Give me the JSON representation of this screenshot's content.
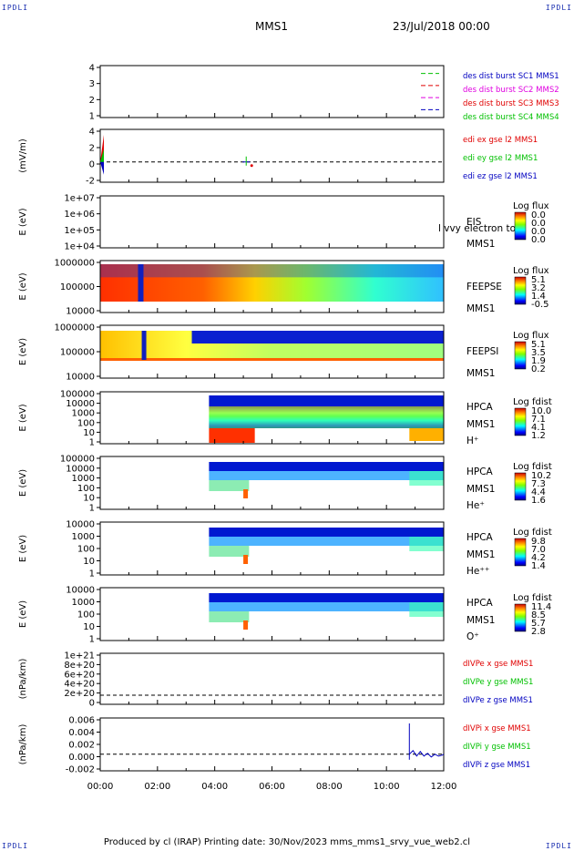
{
  "corner_label": "IPDLI",
  "header": {
    "spacecraft": "MMS1",
    "date": "23/Jul/2018 00:00"
  },
  "footer": {
    "text": "Produced by cl (IRAP)   Printing date: 30/Nov/2023   mms_mms1_srvy_vue_web2.cl"
  },
  "colors": {
    "red": "#e00000",
    "green": "#00c000",
    "blue": "#0000c0",
    "magenta": "#e000e0"
  },
  "chart_data": [
    {
      "type": "line",
      "panel": "spacecraft_flags",
      "ylim": [
        0.5,
        4.5
      ],
      "yticks": [
        "1",
        "2",
        "3",
        "4"
      ],
      "ylabel": "",
      "legend": [
        {
          "text": "des dist burst SC1 MMS1",
          "color": "#0000c0"
        },
        {
          "text": "des dist burst SC2 MMS2",
          "color": "#e000e0"
        },
        {
          "text": "des dist burst SC3 MMS3",
          "color": "#e00000"
        },
        {
          "text": "des dist burst SC4 MMS4",
          "color": "#00c000"
        }
      ],
      "dashes": [
        {
          "y": 4,
          "color": "#00c000"
        },
        {
          "y": 3,
          "color": "#e00000"
        },
        {
          "y": 2,
          "color": "#e000e0"
        },
        {
          "y": 1,
          "color": "#0000c0"
        }
      ]
    },
    {
      "type": "line",
      "panel": "edi_e_field",
      "ylabel": "(mV/m)",
      "ylim": [
        -3,
        5
      ],
      "yticks": [
        "-2",
        "0",
        "2",
        "4"
      ],
      "legend": [
        {
          "text": "edi ex gse l2 MMS1",
          "color": "#e00000"
        },
        {
          "text": "edi ey gse l2 MMS1",
          "color": "#00c000"
        },
        {
          "text": "edi ez gse l2 MMS1",
          "color": "#0000c0"
        }
      ],
      "zero_line": 0
    },
    {
      "type": "heatmap",
      "panel": "eis",
      "ylabel": "E (eV)",
      "yticks": [
        "1e+04",
        "1e+05",
        "1e+06",
        "1e+07"
      ],
      "labels": [
        "EIS",
        "MMS1"
      ],
      "overlay_label": "l vvy electron to",
      "colorbar": {
        "title": "Log flux",
        "ticks": [
          "0.0",
          "0.0",
          "0.0",
          "0.0"
        ]
      }
    },
    {
      "type": "heatmap",
      "panel": "feeps_electrons",
      "ylabel": "E (eV)",
      "yticks": [
        "10000",
        "100000",
        "1000000"
      ],
      "labels": [
        "FEEPSE",
        "MMS1"
      ],
      "colorbar": {
        "title": "Log flux",
        "ticks": [
          "5.1",
          "3.2",
          "1.4",
          "-0.5"
        ]
      }
    },
    {
      "type": "heatmap",
      "panel": "feeps_ions",
      "ylabel": "E (eV)",
      "yticks": [
        "10000",
        "100000",
        "1000000"
      ],
      "labels": [
        "FEEPSI",
        "MMS1"
      ],
      "colorbar": {
        "title": "Log flux",
        "ticks": [
          "5.1",
          "3.5",
          "1.9",
          "0.2"
        ]
      }
    },
    {
      "type": "heatmap",
      "panel": "hpca_h",
      "ylabel": "E (eV)",
      "yticks": [
        "1",
        "10",
        "100",
        "1000",
        "10000",
        "100000"
      ],
      "labels": [
        "HPCA",
        "MMS1",
        "H⁺"
      ],
      "colorbar": {
        "title": "Log fdist",
        "ticks": [
          "10.0",
          "7.1",
          "4.1",
          "1.2"
        ]
      }
    },
    {
      "type": "heatmap",
      "panel": "hpca_he",
      "ylabel": "E (eV)",
      "yticks": [
        "1",
        "10",
        "100",
        "1000",
        "10000",
        "100000"
      ],
      "labels": [
        "HPCA",
        "MMS1",
        "He⁺"
      ],
      "colorbar": {
        "title": "Log fdist",
        "ticks": [
          "10.2",
          "7.3",
          "4.4",
          "1.6"
        ]
      }
    },
    {
      "type": "heatmap",
      "panel": "hpca_hepp",
      "ylabel": "E (eV)",
      "yticks": [
        "1",
        "10",
        "100",
        "1000",
        "10000"
      ],
      "labels": [
        "HPCA",
        "MMS1",
        "He⁺⁺"
      ],
      "colorbar": {
        "title": "Log fdist",
        "ticks": [
          "9.8",
          "7.0",
          "4.2",
          "1.4"
        ]
      }
    },
    {
      "type": "heatmap",
      "panel": "hpca_o",
      "ylabel": "E (eV)",
      "yticks": [
        "1",
        "10",
        "100",
        "1000",
        "10000"
      ],
      "labels": [
        "HPCA",
        "MMS1",
        "O⁺"
      ],
      "colorbar": {
        "title": "Log fdist",
        "ticks": [
          "11.4",
          "8.5",
          "5.7",
          "2.8"
        ]
      }
    },
    {
      "type": "line",
      "panel": "divpe",
      "ylabel": "(nPa/km)",
      "ylim": [
        -2e+20,
        1.1e+21
      ],
      "yticks": [
        "0",
        "2e+20",
        "4e+20",
        "6e+20",
        "8e+20",
        "1e+21"
      ],
      "legend": [
        {
          "text": "dIVPe x gse MMS1",
          "color": "#e00000"
        },
        {
          "text": "dIVPe y gse MMS1",
          "color": "#00c000"
        },
        {
          "text": "dIVPe z gse MMS1",
          "color": "#0000c0"
        }
      ],
      "zero_line": 0
    },
    {
      "type": "line",
      "panel": "divpi",
      "ylabel": "(nPa/km)",
      "ylim": [
        -0.003,
        0.007
      ],
      "yticks": [
        "-0.002",
        "0.000",
        "0.002",
        "0.004",
        "0.006"
      ],
      "legend": [
        {
          "text": "dIVPi x gse MMS1",
          "color": "#e00000"
        },
        {
          "text": "dIVPi y gse MMS1",
          "color": "#00c000"
        },
        {
          "text": "dIVPi z gse MMS1",
          "color": "#0000c0"
        }
      ],
      "zero_line": 0,
      "spike_time_hours": 10.8
    }
  ],
  "time_axis": {
    "ticks": [
      "00:00",
      "02:00",
      "04:00",
      "06:00",
      "08:00",
      "10:00",
      "12:00"
    ],
    "range_hours": [
      0,
      12
    ]
  }
}
